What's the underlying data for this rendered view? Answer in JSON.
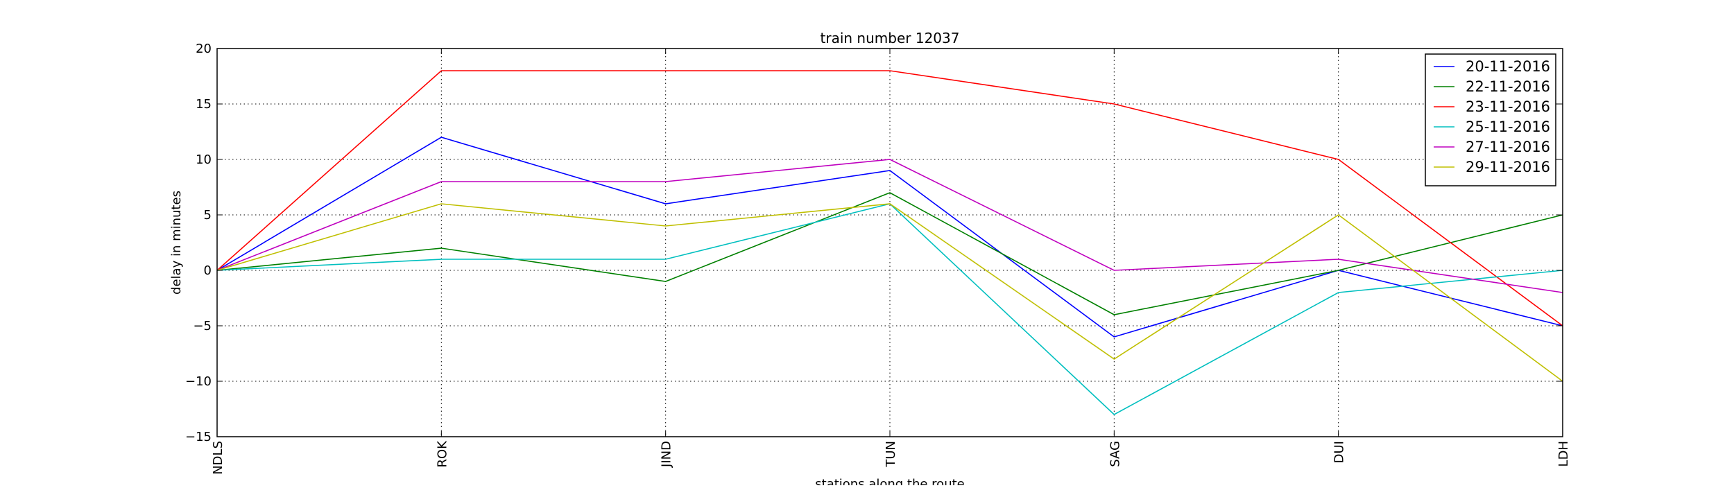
{
  "chart_data": {
    "type": "line",
    "title": "train number 12037",
    "xlabel": "stations along the route",
    "ylabel": "delay in minutes",
    "categories": [
      "NDLS",
      "ROK",
      "JIND",
      "TUN",
      "SAG",
      "DUI",
      "LDH"
    ],
    "ylim": [
      -15,
      20
    ],
    "yticks": [
      -15,
      -10,
      -5,
      0,
      5,
      10,
      15,
      20
    ],
    "grid": true,
    "legend_position": "top-right",
    "series": [
      {
        "name": "20-11-2016",
        "color": "#0000ff",
        "values": [
          0,
          12,
          6,
          9,
          -6,
          0,
          -5
        ]
      },
      {
        "name": "22-11-2016",
        "color": "#008000",
        "values": [
          0,
          2,
          -1,
          7,
          -4,
          0,
          5
        ]
      },
      {
        "name": "23-11-2016",
        "color": "#ff0000",
        "values": [
          0,
          18,
          18,
          18,
          15,
          10,
          -5
        ]
      },
      {
        "name": "25-11-2016",
        "color": "#00bfbf",
        "values": [
          0,
          1,
          1,
          6,
          -13,
          -2,
          0
        ]
      },
      {
        "name": "27-11-2016",
        "color": "#bf00bf",
        "values": [
          0,
          8,
          8,
          10,
          0,
          1,
          -2
        ]
      },
      {
        "name": "29-11-2016",
        "color": "#bfbf00",
        "values": [
          0,
          6,
          4,
          6,
          -8,
          5,
          -10
        ]
      }
    ]
  }
}
